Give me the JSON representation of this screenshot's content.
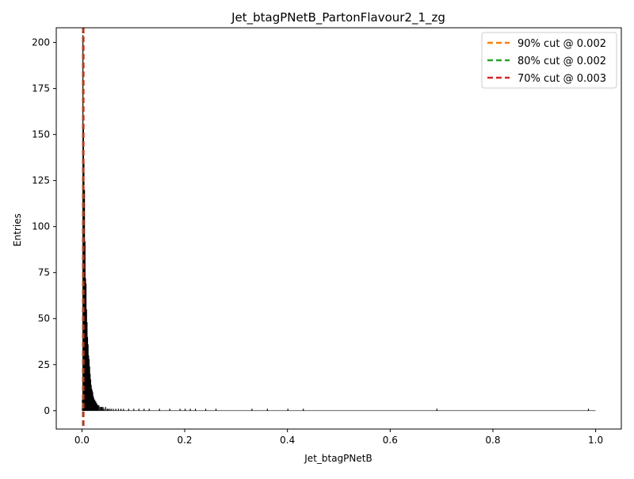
{
  "chart_data": {
    "type": "histogram",
    "title": "Jet_btagPNetB_PartonFlavour2_1_zg",
    "xlabel": "Jet_btagPNetB",
    "ylabel": "Entries",
    "xlim": [
      -0.05,
      1.05
    ],
    "ylim": [
      -10,
      208
    ],
    "xticks": [
      0.0,
      0.2,
      0.4,
      0.6,
      0.8,
      1.0
    ],
    "xtick_labels": [
      "0.0",
      "0.2",
      "0.4",
      "0.6",
      "0.8",
      "1.0"
    ],
    "yticks": [
      0,
      25,
      50,
      75,
      100,
      125,
      150,
      175,
      200
    ],
    "ytick_labels": [
      "0",
      "25",
      "50",
      "75",
      "100",
      "125",
      "150",
      "175",
      "200"
    ],
    "grid": false,
    "legend_position": "top-right",
    "bin_width": 0.001,
    "histogram": {
      "x": [
        0.0,
        0.001,
        0.002,
        0.003,
        0.004,
        0.005,
        0.006,
        0.007,
        0.008,
        0.009,
        0.01,
        0.011,
        0.012,
        0.013,
        0.014,
        0.015,
        0.016,
        0.017,
        0.018,
        0.019,
        0.02,
        0.021,
        0.022,
        0.023,
        0.024,
        0.025,
        0.026,
        0.027,
        0.028,
        0.029,
        0.03,
        0.032,
        0.034,
        0.036,
        0.038,
        0.04,
        0.042,
        0.045,
        0.048,
        0.05,
        0.053,
        0.056,
        0.06,
        0.065,
        0.07,
        0.075,
        0.08,
        0.09,
        0.1,
        0.11,
        0.12,
        0.13,
        0.15,
        0.17,
        0.19,
        0.2,
        0.21,
        0.22,
        0.24,
        0.26,
        0.33,
        0.36,
        0.4,
        0.43,
        0.69,
        0.985
      ],
      "values": [
        6,
        204,
        155,
        135,
        120,
        92,
        72,
        69,
        55,
        48,
        40,
        36,
        30,
        28,
        24,
        20,
        17,
        14,
        12,
        11,
        10,
        8,
        7,
        6,
        6,
        5,
        5,
        4,
        4,
        3,
        3,
        3,
        2,
        2,
        2,
        2,
        1,
        2,
        1,
        1,
        1,
        1,
        1,
        1,
        1,
        1,
        1,
        1,
        1,
        1,
        1,
        1,
        1,
        1,
        1,
        1,
        1,
        1,
        1,
        1,
        1,
        1,
        1,
        1,
        1,
        1
      ]
    },
    "cut_lines": [
      {
        "label": "90% cut @ 0.002",
        "x": 0.002,
        "color": "#ff7f0e"
      },
      {
        "label": "80% cut @ 0.002",
        "x": 0.002,
        "color": "#2ca02c"
      },
      {
        "label": "70% cut @ 0.003",
        "x": 0.003,
        "color": "#d62728"
      }
    ]
  }
}
